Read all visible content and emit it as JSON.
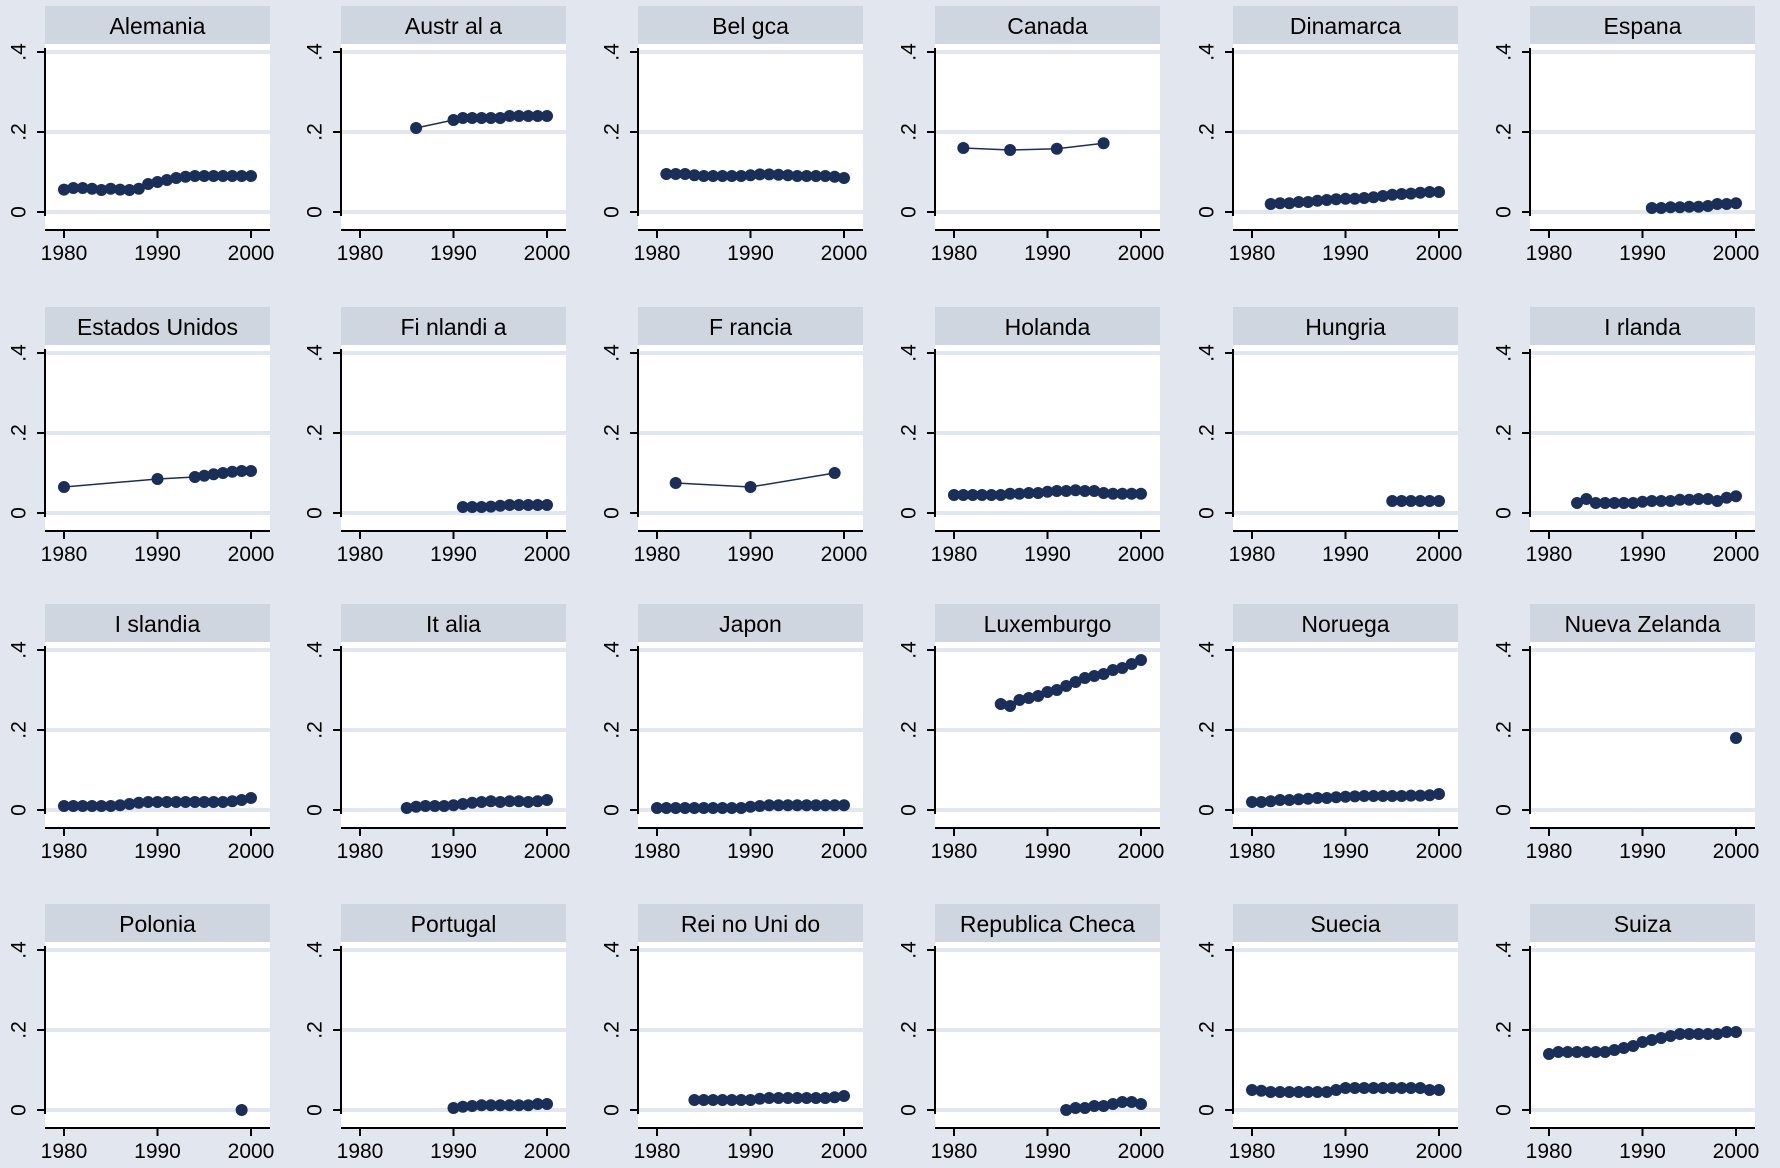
{
  "chart_data": {
    "type": "scatter",
    "layout": "small-multiples",
    "xlim": [
      1980,
      2000
    ],
    "ylim": [
      0,
      0.4
    ],
    "x_ticks": [
      1980,
      1990,
      2000
    ],
    "y_ticks": [
      0,
      0.2,
      0.4
    ],
    "x_tick_labels": [
      "1980",
      "1990",
      "2000"
    ],
    "y_tick_labels": [
      "0",
      ".2",
      ".4"
    ],
    "grid": true,
    "colors": {
      "background": "#e1e6ef",
      "plot_area": "#ffffff",
      "strip": "#d0d6e0",
      "gridline": "#e1e6ef",
      "marker": "#1a2e5a"
    },
    "panels": [
      {
        "title": "Alemania",
        "x": [
          1980,
          1981,
          1982,
          1983,
          1984,
          1985,
          1986,
          1987,
          1988,
          1989,
          1990,
          1991,
          1992,
          1993,
          1994,
          1995,
          1996,
          1997,
          1998,
          1999,
          2000
        ],
        "y": [
          0.056,
          0.06,
          0.06,
          0.058,
          0.055,
          0.058,
          0.056,
          0.055,
          0.058,
          0.07,
          0.075,
          0.08,
          0.085,
          0.088,
          0.09,
          0.09,
          0.09,
          0.09,
          0.09,
          0.09,
          0.09
        ]
      },
      {
        "title": "Austr al a",
        "x": [
          1986,
          1990,
          1991,
          1992,
          1993,
          1994,
          1995,
          1996,
          1997,
          1998,
          1999,
          2000
        ],
        "y": [
          0.21,
          0.23,
          0.235,
          0.235,
          0.235,
          0.235,
          0.235,
          0.24,
          0.24,
          0.24,
          0.24,
          0.24
        ]
      },
      {
        "title": "Bel gca",
        "x": [
          1981,
          1982,
          1983,
          1984,
          1985,
          1986,
          1987,
          1988,
          1989,
          1990,
          1991,
          1992,
          1993,
          1994,
          1995,
          1996,
          1997,
          1998,
          1999,
          2000
        ],
        "y": [
          0.095,
          0.095,
          0.095,
          0.092,
          0.09,
          0.09,
          0.09,
          0.09,
          0.09,
          0.092,
          0.094,
          0.094,
          0.093,
          0.092,
          0.09,
          0.09,
          0.09,
          0.09,
          0.088,
          0.085
        ]
      },
      {
        "title": "Canada",
        "x": [
          1981,
          1986,
          1991,
          1996
        ],
        "y": [
          0.16,
          0.155,
          0.158,
          0.172
        ]
      },
      {
        "title": "Dinamarca",
        "x": [
          1982,
          1983,
          1984,
          1985,
          1986,
          1987,
          1988,
          1989,
          1990,
          1991,
          1992,
          1993,
          1994,
          1995,
          1996,
          1997,
          1998,
          1999,
          2000
        ],
        "y": [
          0.02,
          0.022,
          0.022,
          0.025,
          0.025,
          0.028,
          0.03,
          0.032,
          0.033,
          0.033,
          0.035,
          0.037,
          0.04,
          0.043,
          0.045,
          0.046,
          0.048,
          0.05,
          0.05
        ]
      },
      {
        "title": "Espana",
        "x": [
          1991,
          1992,
          1993,
          1994,
          1995,
          1996,
          1997,
          1998,
          1999,
          2000
        ],
        "y": [
          0.01,
          0.01,
          0.012,
          0.012,
          0.013,
          0.013,
          0.015,
          0.02,
          0.02,
          0.022
        ]
      },
      {
        "title": "Estados Unidos",
        "x": [
          1980,
          1990,
          1994,
          1995,
          1996,
          1997,
          1998,
          1999,
          2000
        ],
        "y": [
          0.065,
          0.085,
          0.09,
          0.093,
          0.097,
          0.1,
          0.103,
          0.105,
          0.105
        ]
      },
      {
        "title": "Fi nlandi a",
        "x": [
          1991,
          1992,
          1993,
          1994,
          1995,
          1996,
          1997,
          1998,
          1999,
          2000
        ],
        "y": [
          0.015,
          0.015,
          0.015,
          0.016,
          0.018,
          0.02,
          0.02,
          0.02,
          0.02,
          0.02
        ]
      },
      {
        "title": "F rancia",
        "x": [
          1982,
          1990,
          1999
        ],
        "y": [
          0.075,
          0.065,
          0.1
        ]
      },
      {
        "title": "Holanda",
        "x": [
          1980,
          1981,
          1982,
          1983,
          1984,
          1985,
          1986,
          1987,
          1988,
          1989,
          1990,
          1991,
          1992,
          1993,
          1994,
          1995,
          1996,
          1997,
          1998,
          1999,
          2000
        ],
        "y": [
          0.045,
          0.045,
          0.045,
          0.045,
          0.045,
          0.045,
          0.048,
          0.048,
          0.05,
          0.05,
          0.053,
          0.055,
          0.055,
          0.057,
          0.055,
          0.055,
          0.05,
          0.048,
          0.048,
          0.048,
          0.048
        ]
      },
      {
        "title": "Hungria",
        "x": [
          1995,
          1996,
          1997,
          1998,
          1999,
          2000
        ],
        "y": [
          0.03,
          0.03,
          0.03,
          0.03,
          0.03,
          0.03
        ]
      },
      {
        "title": "I rlanda",
        "x": [
          1983,
          1984,
          1985,
          1986,
          1987,
          1988,
          1989,
          1990,
          1991,
          1992,
          1993,
          1994,
          1995,
          1996,
          1997,
          1998,
          1999,
          2000
        ],
        "y": [
          0.025,
          0.035,
          0.025,
          0.025,
          0.025,
          0.025,
          0.025,
          0.028,
          0.03,
          0.03,
          0.03,
          0.033,
          0.033,
          0.035,
          0.035,
          0.03,
          0.038,
          0.042
        ]
      },
      {
        "title": "I slandia",
        "x": [
          1980,
          1981,
          1982,
          1983,
          1984,
          1985,
          1986,
          1987,
          1988,
          1989,
          1990,
          1991,
          1992,
          1993,
          1994,
          1995,
          1996,
          1997,
          1998,
          1999,
          2000
        ],
        "y": [
          0.01,
          0.01,
          0.01,
          0.01,
          0.01,
          0.01,
          0.012,
          0.015,
          0.018,
          0.02,
          0.02,
          0.02,
          0.02,
          0.02,
          0.02,
          0.02,
          0.02,
          0.02,
          0.022,
          0.025,
          0.03
        ]
      },
      {
        "title": "It alia",
        "x": [
          1985,
          1986,
          1987,
          1988,
          1989,
          1990,
          1991,
          1992,
          1993,
          1994,
          1995,
          1996,
          1997,
          1998,
          1999,
          2000
        ],
        "y": [
          0.005,
          0.008,
          0.01,
          0.01,
          0.01,
          0.012,
          0.015,
          0.018,
          0.02,
          0.022,
          0.02,
          0.022,
          0.022,
          0.02,
          0.022,
          0.025
        ]
      },
      {
        "title": "Japon",
        "x": [
          1980,
          1981,
          1982,
          1983,
          1984,
          1985,
          1986,
          1987,
          1988,
          1989,
          1990,
          1991,
          1992,
          1993,
          1994,
          1995,
          1996,
          1997,
          1998,
          1999,
          2000
        ],
        "y": [
          0.005,
          0.005,
          0.005,
          0.005,
          0.005,
          0.005,
          0.005,
          0.005,
          0.005,
          0.005,
          0.008,
          0.01,
          0.012,
          0.012,
          0.012,
          0.012,
          0.012,
          0.012,
          0.012,
          0.012,
          0.012
        ]
      },
      {
        "title": "Luxemburgo",
        "x": [
          1985,
          1986,
          1987,
          1988,
          1989,
          1990,
          1991,
          1992,
          1993,
          1994,
          1995,
          1996,
          1997,
          1998,
          1999,
          2000
        ],
        "y": [
          0.265,
          0.26,
          0.275,
          0.28,
          0.285,
          0.295,
          0.3,
          0.31,
          0.32,
          0.33,
          0.335,
          0.34,
          0.35,
          0.355,
          0.365,
          0.375
        ]
      },
      {
        "title": "Noruega",
        "x": [
          1980,
          1981,
          1982,
          1983,
          1984,
          1985,
          1986,
          1987,
          1988,
          1989,
          1990,
          1991,
          1992,
          1993,
          1994,
          1995,
          1996,
          1997,
          1998,
          1999,
          2000
        ],
        "y": [
          0.02,
          0.02,
          0.022,
          0.025,
          0.025,
          0.027,
          0.028,
          0.03,
          0.03,
          0.032,
          0.033,
          0.034,
          0.035,
          0.035,
          0.035,
          0.035,
          0.035,
          0.036,
          0.036,
          0.037,
          0.04
        ]
      },
      {
        "title": "Nueva Zelanda",
        "x": [
          2000
        ],
        "y": [
          0.18
        ]
      },
      {
        "title": "Polonia",
        "x": [
          1999
        ],
        "y": [
          0.0
        ]
      },
      {
        "title": "Portugal",
        "x": [
          1990,
          1991,
          1992,
          1993,
          1994,
          1995,
          1996,
          1997,
          1998,
          1999,
          2000
        ],
        "y": [
          0.005,
          0.008,
          0.01,
          0.012,
          0.012,
          0.012,
          0.012,
          0.012,
          0.012,
          0.015,
          0.015
        ]
      },
      {
        "title": "Rei no Uni do",
        "x": [
          1984,
          1985,
          1986,
          1987,
          1988,
          1989,
          1990,
          1991,
          1992,
          1993,
          1994,
          1995,
          1996,
          1997,
          1998,
          1999,
          2000
        ],
        "y": [
          0.025,
          0.025,
          0.025,
          0.025,
          0.025,
          0.025,
          0.025,
          0.028,
          0.03,
          0.03,
          0.03,
          0.03,
          0.03,
          0.03,
          0.03,
          0.032,
          0.035
        ]
      },
      {
        "title": "Republica Checa",
        "x": [
          1992,
          1993,
          1994,
          1995,
          1996,
          1997,
          1998,
          1999,
          2000
        ],
        "y": [
          0.0,
          0.005,
          0.005,
          0.01,
          0.01,
          0.015,
          0.02,
          0.02,
          0.015
        ]
      },
      {
        "title": "Suecia",
        "x": [
          1980,
          1981,
          1982,
          1983,
          1984,
          1985,
          1986,
          1987,
          1988,
          1989,
          1990,
          1991,
          1992,
          1993,
          1994,
          1995,
          1996,
          1997,
          1998,
          1999,
          2000
        ],
        "y": [
          0.05,
          0.048,
          0.045,
          0.045,
          0.045,
          0.045,
          0.045,
          0.045,
          0.045,
          0.05,
          0.055,
          0.055,
          0.055,
          0.055,
          0.055,
          0.055,
          0.055,
          0.055,
          0.055,
          0.05,
          0.05
        ]
      },
      {
        "title": "Suiza",
        "x": [
          1980,
          1981,
          1982,
          1983,
          1984,
          1985,
          1986,
          1987,
          1988,
          1989,
          1990,
          1991,
          1992,
          1993,
          1994,
          1995,
          1996,
          1997,
          1998,
          1999,
          2000
        ],
        "y": [
          0.14,
          0.145,
          0.145,
          0.145,
          0.145,
          0.145,
          0.145,
          0.15,
          0.155,
          0.16,
          0.17,
          0.175,
          0.18,
          0.185,
          0.19,
          0.19,
          0.19,
          0.19,
          0.19,
          0.195,
          0.195
        ]
      }
    ]
  }
}
